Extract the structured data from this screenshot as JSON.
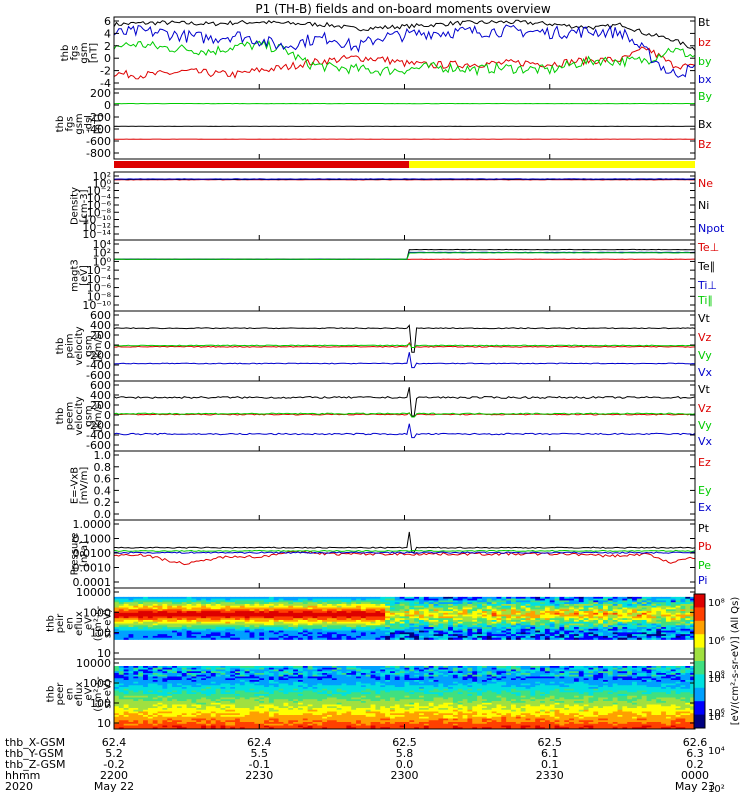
{
  "title": "P1 (TH-B) fields and on-board moments overview",
  "colors": {
    "black": "#000000",
    "red": "#dd0000",
    "green": "#00cc00",
    "blue": "#0000cc",
    "yellow": "#ffff00",
    "cyan": "#00cccc"
  },
  "chart_data": [
    {
      "id": "fgs",
      "type": "line",
      "ylabel": [
        "thb",
        "fgs",
        "gsm",
        "[nT]"
      ],
      "yticks": [
        "6",
        "4",
        "2",
        "0",
        "-2",
        "-4"
      ],
      "ylim": [
        -5,
        6.5
      ],
      "series": [
        {
          "name": "Bt",
          "color": "#000000",
          "profile": [
            5.3,
            5.5,
            5.6,
            5.5,
            5.4,
            5.6,
            5.7,
            5.5,
            5.4,
            5.2,
            4.6,
            4.8,
            5.0,
            5.2,
            5.5,
            5.6,
            5.7,
            5.6,
            5.4,
            5.0,
            4.8,
            5.3,
            3.8,
            3.0,
            1.4
          ],
          "noise": 0.35
        },
        {
          "name": "bz",
          "color": "#dd0000",
          "profile": [
            -2.5,
            -2.8,
            -2.6,
            -2.2,
            -2.5,
            -2.7,
            -2.0,
            -1.6,
            -0.8,
            -0.4,
            0.0,
            -0.2,
            -0.9,
            -1.2,
            -1.1,
            -1.0,
            -0.9,
            -0.8,
            -1.0,
            -0.6,
            -0.4,
            -0.3,
            1.5,
            -1.0,
            -1.6
          ],
          "noise": 0.6
        },
        {
          "name": "by",
          "color": "#00cc00",
          "profile": [
            1.8,
            2.2,
            1.6,
            1.4,
            1.0,
            1.8,
            2.0,
            1.4,
            -1.0,
            -1.6,
            -1.8,
            -2.1,
            -1.9,
            -1.5,
            -1.6,
            -1.9,
            -1.6,
            -1.8,
            -2.0,
            -1.0,
            -0.4,
            -0.6,
            -0.4,
            1.4,
            0.2
          ],
          "noise": 0.8
        },
        {
          "name": "bx",
          "color": "#0000cc",
          "profile": [
            3.8,
            4.2,
            4.0,
            3.4,
            3.1,
            3.6,
            2.8,
            1.8,
            2.8,
            3.2,
            1.6,
            3.3,
            3.6,
            4.0,
            4.1,
            4.2,
            4.3,
            4.2,
            4.0,
            4.1,
            4.2,
            4.0,
            0.8,
            -2.6,
            -1.8
          ],
          "noise": 1.0
        }
      ]
    },
    {
      "id": "fgs-dsl",
      "type": "line",
      "ylabel": [
        "thb",
        "fgs",
        "gsm",
        "-dsl",
        "[nT]"
      ],
      "yticks": [
        "200",
        "0",
        "-200",
        "-400",
        "-600",
        "-800"
      ],
      "ylim": [
        -950,
        250
      ],
      "series": [
        {
          "name": "By",
          "color": "#00cc00",
          "profile": [
            0
          ],
          "noise": 2
        },
        {
          "name": "Bx",
          "color": "#000000",
          "profile": [
            -390
          ],
          "noise": 2
        },
        {
          "name": "Bz",
          "color": "#dd0000",
          "profile": [
            -610
          ],
          "noise": 2
        }
      ]
    },
    {
      "id": "mode",
      "type": "bar",
      "segments": [
        {
          "from": 0,
          "to": 0.508,
          "color": "#dd0000"
        },
        {
          "from": 0.508,
          "to": 1,
          "color": "#ffff00"
        }
      ]
    },
    {
      "id": "density",
      "type": "line",
      "yscale": "log",
      "ylabel": [
        "Density",
        "[cm-3]"
      ],
      "yticks": [
        "10²",
        "10⁰",
        "10⁻²",
        "10⁻⁴",
        "10⁻⁶",
        "10⁻⁸",
        "10⁻¹⁰",
        "10⁻¹²",
        "10⁻¹⁴"
      ],
      "ylim": [
        -15,
        2.5
      ],
      "series": [
        {
          "name": "Ne",
          "color": "#dd0000",
          "profile": [
            0.5
          ],
          "noise": 0.05
        },
        {
          "name": "Ni",
          "color": "#000000",
          "profile": [
            0.6
          ],
          "noise": 0.05
        },
        {
          "name": "Npot",
          "color": "#0000cc",
          "profile": [
            0.7
          ],
          "noise": 0.05
        }
      ]
    },
    {
      "id": "temp",
      "type": "line",
      "yscale": "log",
      "ylabel": [
        "magt3",
        "[eV]"
      ],
      "yticks": [
        "10⁴",
        "10²",
        "10⁰",
        "10⁻²",
        "10⁻⁴",
        "10⁻⁶",
        "10⁻⁸",
        "10⁻¹⁰"
      ],
      "ylim": [
        -11,
        4.5
      ],
      "series": [
        {
          "name": "Te⊥",
          "color": "#dd0000",
          "profile": [
            0.3
          ],
          "noise": 0.04
        },
        {
          "name": "Te∥",
          "color": "#000000",
          "step": [
            [
              0,
              0.3
            ],
            [
              0.508,
              2.4
            ]
          ],
          "noise": 0.04
        },
        {
          "name": "Ti⊥",
          "color": "#0000cc",
          "step": [
            [
              0,
              0.3
            ],
            [
              0.508,
              1.8
            ]
          ],
          "noise": 0.04
        },
        {
          "name": "Ti∥",
          "color": "#00cc00",
          "step": [
            [
              0,
              0.3
            ],
            [
              0.508,
              1.7
            ]
          ],
          "noise": 0.04
        }
      ]
    },
    {
      "id": "peim",
      "type": "line",
      "ylabel": [
        "thb",
        "peim",
        "velocity",
        "gsm",
        "[km/s]"
      ],
      "yticks": [
        "600",
        "400",
        "200",
        "0",
        "-200",
        "-400",
        "-600"
      ],
      "ylim": [
        -680,
        680
      ],
      "series": [
        {
          "name": "Vt",
          "color": "#000000",
          "profile": [
            345
          ],
          "noise": 8,
          "spike": [
            400,
            -120
          ]
        },
        {
          "name": "Vz",
          "color": "#dd0000",
          "profile": [
            -15
          ],
          "noise": 8,
          "spike": [
            60,
            -30
          ]
        },
        {
          "name": "Vy",
          "color": "#00cc00",
          "profile": [
            10
          ],
          "noise": 8,
          "spike": [
            40,
            -30
          ]
        },
        {
          "name": "Vx",
          "color": "#0000cc",
          "profile": [
            -340
          ],
          "noise": 8,
          "spike": [
            -120,
            -420
          ]
        }
      ]
    },
    {
      "id": "peem",
      "type": "line",
      "ylabel": [
        "thb",
        "peem",
        "velocity",
        "gsm",
        "[km/s]"
      ],
      "yticks": [
        "600",
        "400",
        "200",
        "0",
        "-200",
        "-400",
        "-600"
      ],
      "ylim": [
        -680,
        680
      ],
      "series": [
        {
          "name": "Vt",
          "color": "#000000",
          "profile": [
            360
          ],
          "noise": 18,
          "spike": [
            560,
            0
          ]
        },
        {
          "name": "Vz",
          "color": "#dd0000",
          "profile": [
            30
          ],
          "noise": 10,
          "spike": [
            60,
            -20
          ]
        },
        {
          "name": "Vy",
          "color": "#00cc00",
          "profile": [
            45
          ],
          "noise": 12,
          "spike": [
            60,
            -20
          ]
        },
        {
          "name": "Vx",
          "color": "#0000cc",
          "profile": [
            -350
          ],
          "noise": 14,
          "spike": [
            -150,
            -420
          ]
        }
      ]
    },
    {
      "id": "efield",
      "type": "line",
      "ylabel": [
        "E=-VxB",
        "[mV/m]"
      ],
      "yticks": [
        "1.0",
        "0.8",
        "0.6",
        "0.4",
        "0.2",
        "0.0"
      ],
      "ylim": [
        0,
        1.0
      ],
      "series": [
        {
          "name": "Ez",
          "color": "#dd0000"
        },
        {
          "name": "Ey",
          "color": "#00cc00"
        },
        {
          "name": "Ex",
          "color": "#0000cc"
        }
      ]
    },
    {
      "id": "pressure",
      "type": "line",
      "yscale": "log",
      "ylabel": [
        "Pressure",
        "[nPa]"
      ],
      "yticks": [
        "1.0000",
        "0.1000",
        "0.0100",
        "0.0010",
        "0.0001"
      ],
      "ylim": [
        -4,
        0
      ],
      "series": [
        {
          "name": "Pt",
          "color": "#000000",
          "profile": [
            -1.63
          ],
          "noise": 0.03,
          "spike": [
            -0.7,
            -1.9
          ]
        },
        {
          "name": "Pb",
          "color": "#dd0000",
          "profile": [
            -2.1,
            -2.0,
            -2.3,
            -2.6,
            -2.3,
            -2.1,
            -2.2,
            -1.9,
            -1.9,
            -2.0,
            -2.0,
            -2.0,
            -2.0,
            -2.0,
            -2.0,
            -2.0,
            -2.0,
            -2.0,
            -2.0,
            -2.0,
            -2.1,
            -2.1,
            -2.0,
            -2.5,
            -2.2
          ],
          "noise": 0.08
        },
        {
          "name": "Pe",
          "color": "#00cc00",
          "profile": [
            -1.82
          ],
          "noise": 0.03
        },
        {
          "name": "Pi",
          "color": "#0000cc",
          "profile": [
            -1.92
          ],
          "noise": 0.04
        }
      ]
    },
    {
      "id": "peir",
      "type": "heatmap",
      "yscale": "log",
      "ylabel": [
        "thb",
        "peir",
        "en",
        "eflux",
        "eV",
        "(cm²-s-",
        "sr-eV)"
      ],
      "yticks": [
        "10000",
        "1000",
        "100",
        "10"
      ],
      "ylim": [
        0.5,
        4.4
      ]
    },
    {
      "id": "peer",
      "type": "heatmap",
      "yscale": "log",
      "ylabel": [
        "thb",
        "peer",
        "en",
        "eflux",
        "eV",
        "(cm²-s-",
        "sr-eV)"
      ],
      "yticks": [
        "10000",
        "1000",
        "100",
        "10"
      ],
      "ylim": [
        0.6,
        4.3
      ]
    }
  ],
  "colorbar": {
    "ticks": [
      "10⁸",
      "10⁶",
      "10⁴",
      "10²"
    ],
    "label": "[eV/(cm²-s-sr-eV)] (All Qs)"
  },
  "xaxis": {
    "rows": [
      {
        "label": "thb_X-GSM",
        "values": [
          "62.4",
          "62.4",
          "62.5",
          "62.5",
          "62.6"
        ]
      },
      {
        "label": "thb_Y-GSM",
        "values": [
          "5.2",
          "5.5",
          "5.8",
          "6.1",
          "6.3"
        ]
      },
      {
        "label": "thb_Z-GSM",
        "values": [
          "-0.2",
          "-0.1",
          "0.0",
          "0.1",
          "0.2"
        ]
      },
      {
        "label": "hhmm",
        "values": [
          "2200",
          "2230",
          "2300",
          "2330",
          "0000"
        ]
      },
      {
        "label": "2020",
        "values": [
          "May 22",
          "",
          "",
          "",
          "May 23"
        ]
      }
    ]
  }
}
